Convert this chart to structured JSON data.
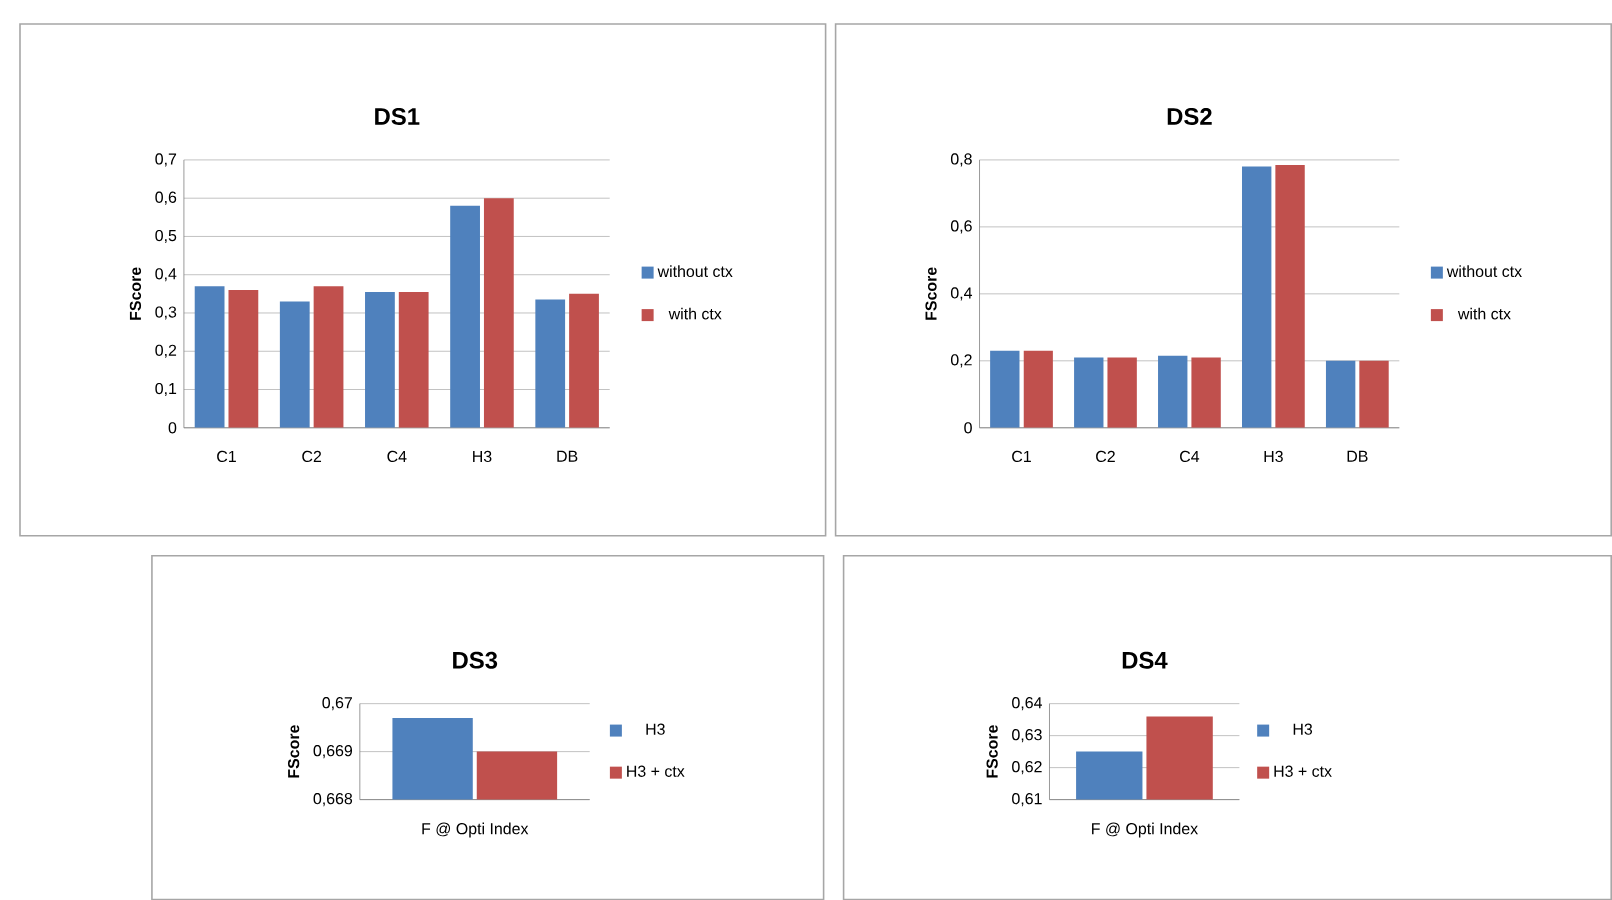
{
  "chart_data": [
    {
      "type": "bar",
      "title": "DS1",
      "ylabel": "FScore",
      "categories": [
        "C1",
        "C2",
        "C4",
        "H3",
        "DB"
      ],
      "series": [
        {
          "name": "without ctx",
          "color": "#4f81bd",
          "values": [
            0.37,
            0.33,
            0.355,
            0.58,
            0.335
          ]
        },
        {
          "name": "with ctx",
          "color": "#c0504d",
          "values": [
            0.36,
            0.37,
            0.355,
            0.6,
            0.35
          ]
        }
      ],
      "ylim": [
        0,
        0.7
      ],
      "yticks": [
        0,
        {
          "value": 0.1,
          "label": "0,1"
        },
        {
          "value": 0.2,
          "label": "0,2"
        },
        {
          "value": 0.3,
          "label": "0,3"
        },
        {
          "value": 0.4,
          "label": "0,4"
        },
        {
          "value": 0.5,
          "label": "0,5"
        },
        {
          "value": 0.6,
          "label": "0,6"
        },
        {
          "value": 0.7,
          "label": "0,7"
        }
      ],
      "grid": "y",
      "legend": "right"
    },
    {
      "type": "bar",
      "title": "DS2",
      "ylabel": "FScore",
      "categories": [
        "C1",
        "C2",
        "C4",
        "H3",
        "DB"
      ],
      "series": [
        {
          "name": "without ctx",
          "color": "#4f81bd",
          "values": [
            0.23,
            0.21,
            0.215,
            0.78,
            0.2
          ]
        },
        {
          "name": "with ctx",
          "color": "#c0504d",
          "values": [
            0.23,
            0.21,
            0.21,
            0.785,
            0.2
          ]
        }
      ],
      "ylim": [
        0,
        0.8
      ],
      "yticks": [
        0,
        {
          "value": 0.2,
          "label": "0,2"
        },
        {
          "value": 0.4,
          "label": "0,4"
        },
        {
          "value": 0.6,
          "label": "0,6"
        },
        {
          "value": 0.8,
          "label": "0,8"
        }
      ],
      "grid": "y",
      "legend": "right"
    },
    {
      "type": "bar",
      "title": "DS3",
      "ylabel": "FScore",
      "categories": [
        "F @ Opti Index"
      ],
      "series": [
        {
          "name": "H3",
          "color": "#4f81bd",
          "values": [
            0.6697
          ]
        },
        {
          "name": "H3 + ctx",
          "color": "#c0504d",
          "values": [
            0.669
          ]
        }
      ],
      "ylim": [
        0.668,
        0.67
      ],
      "yticks": [
        {
          "value": 0.668,
          "label": "0,668"
        },
        {
          "value": 0.669,
          "label": "0,669"
        },
        {
          "value": 0.67,
          "label": "0,67"
        }
      ],
      "grid": "y",
      "legend": "right"
    },
    {
      "type": "bar",
      "title": "DS4",
      "ylabel": "FScore",
      "categories": [
        "F @ Opti Index"
      ],
      "series": [
        {
          "name": "H3",
          "color": "#4f81bd",
          "values": [
            0.625
          ]
        },
        {
          "name": "H3 + ctx",
          "color": "#c0504d",
          "values": [
            0.636
          ]
        }
      ],
      "ylim": [
        0.61,
        0.64
      ],
      "yticks": [
        {
          "value": 0.61,
          "label": "0,61"
        },
        {
          "value": 0.62,
          "label": "0,62"
        },
        {
          "value": 0.63,
          "label": "0,63"
        },
        {
          "value": 0.64,
          "label": "0,64"
        }
      ],
      "grid": "y",
      "legend": "right"
    }
  ]
}
